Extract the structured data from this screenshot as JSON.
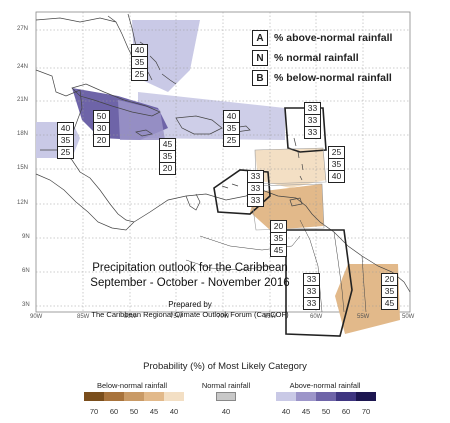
{
  "map": {
    "lat_ticks": [
      "27N",
      "24N",
      "21N",
      "18N",
      "15N",
      "12N",
      "9N",
      "6N",
      "3N"
    ],
    "lon_ticks": [
      "90W",
      "85W",
      "80W",
      "75W",
      "70W",
      "65W",
      "60W",
      "55W",
      "50W"
    ],
    "land_color": "#ffffff",
    "sea_color": "#ffffff"
  },
  "key": {
    "a_letter": "A",
    "a_text": "% above-normal rainfall",
    "n_letter": "N",
    "n_text": "% normal rainfall",
    "b_letter": "B",
    "b_text": "% below-normal rainfall"
  },
  "regions": [
    {
      "id": "bahamas",
      "a": "40",
      "n": "35",
      "b": "25",
      "fill": "#c9c9e6"
    },
    {
      "id": "cuba-west",
      "a": "40",
      "n": "35",
      "b": "25",
      "fill": "#c9c9e6"
    },
    {
      "id": "cuba-central",
      "a": "50",
      "n": "30",
      "b": "20",
      "fill": "#6e64a8"
    },
    {
      "id": "jamaica",
      "a": "45",
      "n": "35",
      "b": "20",
      "fill": "#9c95c9"
    },
    {
      "id": "hispaniola",
      "a": "40",
      "n": "35",
      "b": "25",
      "fill": "#c9c9e6"
    },
    {
      "id": "leeward",
      "a": "33",
      "n": "33",
      "b": "33",
      "fill": "none"
    },
    {
      "id": "windward",
      "a": "25",
      "n": "35",
      "b": "40",
      "fill": "#f3dfc4"
    },
    {
      "id": "abc-islands",
      "a": "33",
      "n": "33",
      "b": "33",
      "fill": "none"
    },
    {
      "id": "trinidad",
      "a": "20",
      "n": "35",
      "b": "45",
      "fill": "#e2b98a"
    },
    {
      "id": "guyana",
      "a": "33",
      "n": "33",
      "b": "33",
      "fill": "none"
    },
    {
      "id": "french-guiana",
      "a": "20",
      "n": "35",
      "b": "45",
      "fill": "#e2b98a"
    }
  ],
  "title": {
    "line1": "Precipitation outlook for the Caribbean",
    "line2": "September - October - November 2016",
    "prepared": "Prepared by",
    "org": "The Caribbean Regional Climate Outlook Forum (CariCOF)"
  },
  "colorbar": {
    "title": "Probability (%) of Most Likely Category",
    "below_label": "Below-normal rainfall",
    "normal_label": "Normal rainfall",
    "above_label": "Above-normal rainfall",
    "below": [
      {
        "v": "70",
        "c": "#7a4e1c"
      },
      {
        "v": "60",
        "c": "#a8733c"
      },
      {
        "v": "50",
        "c": "#c99a66"
      },
      {
        "v": "45",
        "c": "#e2b98a"
      },
      {
        "v": "40",
        "c": "#f3dfc4"
      }
    ],
    "normal": [
      {
        "v": "40",
        "c": "#c8c8c8"
      }
    ],
    "above": [
      {
        "v": "40",
        "c": "#c9c9e6"
      },
      {
        "v": "45",
        "c": "#9c95c9"
      },
      {
        "v": "50",
        "c": "#6e64a8"
      },
      {
        "v": "60",
        "c": "#3e3580"
      },
      {
        "v": "70",
        "c": "#1c1650"
      }
    ]
  }
}
